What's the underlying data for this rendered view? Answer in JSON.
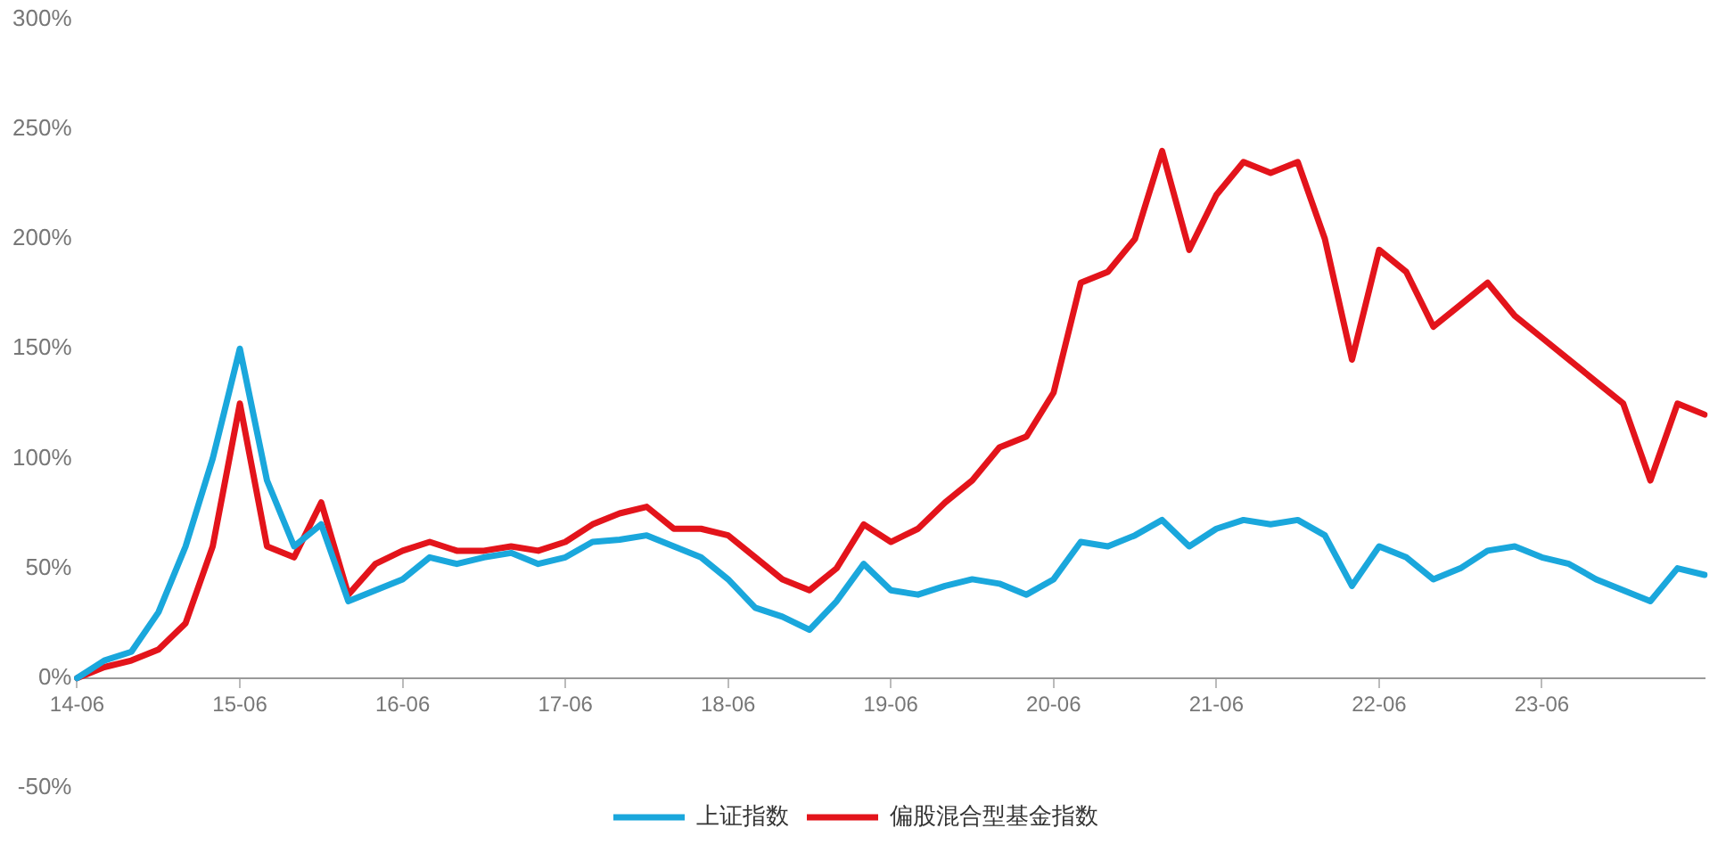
{
  "chart_data": {
    "type": "line",
    "categories": [
      "14-06",
      null,
      null,
      null,
      null,
      null,
      "15-06",
      null,
      null,
      null,
      null,
      null,
      "16-06",
      null,
      null,
      null,
      null,
      null,
      "17-06",
      null,
      null,
      null,
      null,
      null,
      "18-06",
      null,
      null,
      null,
      null,
      null,
      "19-06",
      null,
      null,
      null,
      null,
      null,
      "20-06",
      null,
      null,
      null,
      null,
      null,
      "21-06",
      null,
      null,
      null,
      null,
      null,
      "22-06",
      null,
      null,
      null,
      null,
      null,
      "23-06",
      null,
      null,
      null,
      null,
      null,
      null
    ],
    "series": [
      {
        "name": "上证指数",
        "color": "#1aa7dc",
        "values": [
          0,
          8,
          12,
          30,
          60,
          100,
          150,
          90,
          60,
          70,
          35,
          40,
          45,
          55,
          52,
          55,
          57,
          52,
          55,
          62,
          63,
          65,
          60,
          55,
          45,
          32,
          28,
          22,
          35,
          52,
          40,
          38,
          42,
          45,
          43,
          38,
          45,
          62,
          60,
          65,
          72,
          60,
          68,
          72,
          70,
          72,
          65,
          42,
          60,
          55,
          45,
          50,
          58,
          60,
          55,
          52,
          45,
          40,
          35,
          50,
          47
        ]
      },
      {
        "name": "偏股混合型基金指数",
        "color": "#e3141b",
        "values": [
          0,
          5,
          8,
          13,
          25,
          60,
          125,
          60,
          55,
          80,
          38,
          52,
          58,
          62,
          58,
          58,
          60,
          58,
          62,
          70,
          75,
          78,
          68,
          68,
          65,
          55,
          45,
          40,
          50,
          70,
          62,
          68,
          80,
          90,
          105,
          110,
          130,
          180,
          185,
          200,
          240,
          195,
          220,
          235,
          230,
          235,
          200,
          145,
          195,
          185,
          160,
          170,
          180,
          165,
          155,
          145,
          135,
          125,
          90,
          125,
          120
        ]
      }
    ],
    "ylim": [
      -50,
      300
    ],
    "yticks": [
      {
        "value": -50,
        "label": "-50%"
      },
      {
        "value": 0,
        "label": "0%"
      },
      {
        "value": 50,
        "label": "50%"
      },
      {
        "value": 100,
        "label": "100%"
      },
      {
        "value": 150,
        "label": "150%"
      },
      {
        "value": 200,
        "label": "200%"
      },
      {
        "value": 250,
        "label": "250%"
      },
      {
        "value": 300,
        "label": "300%"
      }
    ],
    "grid": false,
    "legend": "bottom",
    "marker": "none",
    "line_style": "solid"
  }
}
